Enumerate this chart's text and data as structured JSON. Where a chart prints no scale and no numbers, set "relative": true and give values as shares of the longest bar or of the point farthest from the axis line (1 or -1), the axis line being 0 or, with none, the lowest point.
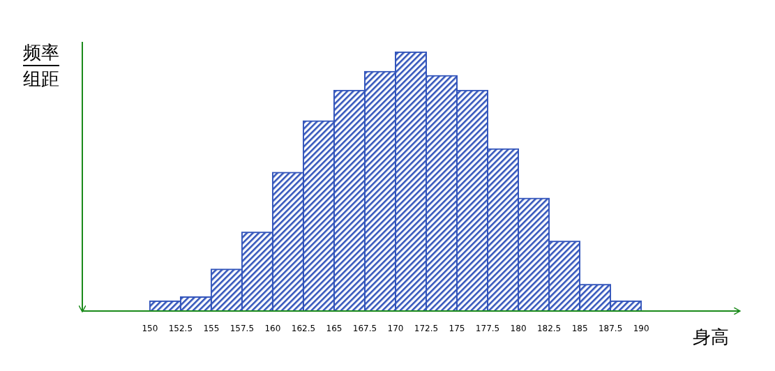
{
  "chart_data": {
    "type": "bar",
    "xlabel": "身高",
    "ylabel": "频率组距",
    "relative": true,
    "color": "#3355bb",
    "x": [
      151.25,
      153.75,
      156.25,
      158.75,
      161.25,
      163.75,
      166.25,
      168.75,
      171.25,
      173.75,
      176.25,
      178.75,
      181.25,
      183.75,
      186.25,
      188.75
    ],
    "values": [
      0.038,
      0.054,
      0.161,
      0.304,
      0.535,
      0.734,
      0.852,
      0.925,
      1,
      0.909,
      0.852,
      0.626,
      0.435,
      0.269,
      0.102,
      0.038
    ],
    "xlim": [
      144.5,
      198
    ],
    "xticks": [
      150,
      152.5,
      155,
      157.5,
      160,
      162.5,
      165,
      167.5,
      170,
      172.5,
      175,
      177.5,
      180,
      182.5,
      185,
      187.5,
      190
    ]
  }
}
